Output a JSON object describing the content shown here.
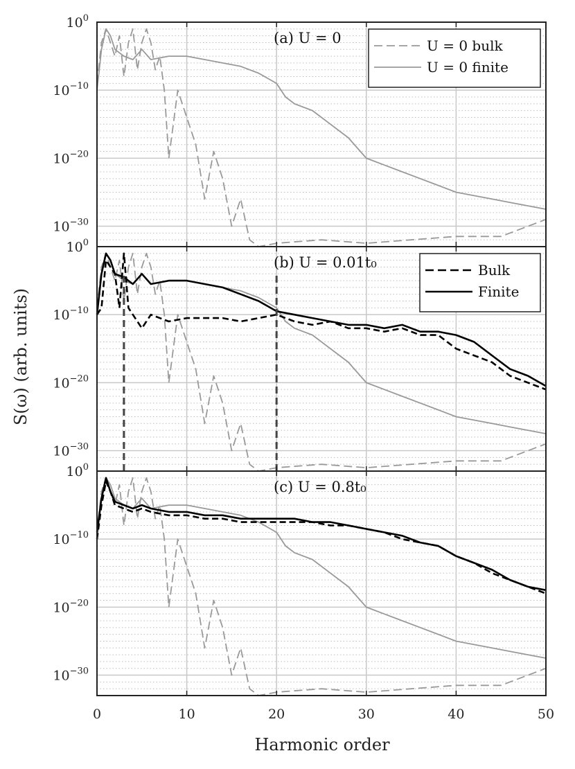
{
  "figure": {
    "ylabel": "S(ω) (arb. units)",
    "xlabel": "Harmonic order",
    "x_ticks": [
      "0",
      "10",
      "20",
      "30",
      "40",
      "50"
    ],
    "y_tick_base": "10",
    "y_tick_exponents": [
      "0",
      "−10",
      "−20",
      "−30"
    ]
  },
  "chart_data": [
    {
      "type": "line",
      "panel_label": "(a) U = 0",
      "xlim": [
        0,
        50
      ],
      "ylim_log10": [
        -33,
        0
      ],
      "y_scale": "log",
      "grid": true,
      "legend": {
        "placement": "top-right",
        "entries": [
          "U = 0 bulk",
          "U = 0 finite"
        ]
      },
      "series": [
        {
          "name": "U = 0 bulk",
          "style": "dashed",
          "color": "#999999",
          "x": [
            0,
            0.5,
            1,
            1.5,
            2,
            2.5,
            3,
            3.5,
            4,
            4.5,
            5,
            5.5,
            6,
            6.5,
            7,
            7.5,
            8,
            9,
            10,
            11,
            12,
            13,
            14,
            15,
            16,
            17,
            18,
            20,
            25,
            30,
            35,
            40,
            45,
            50
          ],
          "log10_y": [
            -9,
            -3,
            -1,
            -3,
            -5,
            -2,
            -8,
            -3,
            -1,
            -7,
            -3,
            -1,
            -3,
            -7,
            -5,
            -10,
            -20,
            -10,
            -14,
            -18,
            -26,
            -19,
            -23,
            -30,
            -26,
            -32,
            -33,
            -32.5,
            -32,
            -32.5,
            -32,
            -31.5,
            -31.5,
            -29
          ]
        },
        {
          "name": "U = 0 finite",
          "style": "solid",
          "color": "#999999",
          "x": [
            0,
            0.5,
            1,
            1.5,
            2,
            3,
            4,
            5,
            6,
            8,
            10,
            12,
            14,
            16,
            18,
            20,
            21,
            22,
            24,
            26,
            28,
            30,
            32,
            34,
            36,
            38,
            40,
            42,
            44,
            46,
            48,
            50
          ],
          "log10_y": [
            -10,
            -4,
            -1,
            -2,
            -4,
            -5,
            -5.5,
            -4,
            -5.5,
            -5,
            -5,
            -5.5,
            -6,
            -6.5,
            -7.5,
            -9,
            -11,
            -12,
            -13,
            -15,
            -17,
            -20,
            -21,
            -22,
            -23,
            -24,
            -25,
            -25.5,
            -26,
            -26.5,
            -27,
            -27.5
          ]
        }
      ]
    },
    {
      "type": "line",
      "panel_label": "(b) U = 0.01t₀",
      "xlim": [
        0,
        50
      ],
      "ylim_log10": [
        -33,
        0
      ],
      "y_scale": "log",
      "grid": true,
      "legend": {
        "placement": "top-right",
        "entries": [
          "Bulk",
          "Finite"
        ]
      },
      "vertical_markers_x": [
        3,
        20
      ],
      "series": [
        {
          "name": "Bulk",
          "style": "dashed",
          "color": "#000000",
          "x": [
            0,
            0.5,
            1,
            2,
            2.5,
            3,
            3.5,
            4,
            5,
            6,
            8,
            10,
            12,
            14,
            16,
            18,
            20,
            22,
            24,
            26,
            28,
            30,
            32,
            34,
            36,
            38,
            40,
            42,
            44,
            46,
            48,
            50
          ],
          "log10_y": [
            -10,
            -9,
            -2,
            -4,
            -9,
            -1,
            -9,
            -10,
            -12,
            -10,
            -11,
            -10.5,
            -10.5,
            -10.5,
            -11,
            -10.5,
            -10,
            -11,
            -11.5,
            -11,
            -12,
            -12,
            -12.5,
            -12,
            -13,
            -13,
            -15,
            -16,
            -17,
            -19,
            -20,
            -21
          ]
        },
        {
          "name": "Finite",
          "style": "solid",
          "color": "#000000",
          "x": [
            0,
            0.5,
            1,
            1.5,
            2,
            3,
            4,
            5,
            6,
            8,
            10,
            12,
            14,
            16,
            18,
            20,
            22,
            24,
            26,
            28,
            30,
            32,
            34,
            36,
            38,
            40,
            42,
            44,
            46,
            48,
            50
          ],
          "log10_y": [
            -10,
            -4,
            -1,
            -2,
            -4,
            -4.5,
            -5.5,
            -4,
            -5.5,
            -5,
            -5,
            -5.5,
            -6,
            -7,
            -8,
            -9.5,
            -10,
            -10.5,
            -11,
            -11.5,
            -11.5,
            -12,
            -11.5,
            -12.5,
            -12.5,
            -13,
            -14,
            -16,
            -18,
            -19,
            -20.5
          ]
        },
        {
          "name": "",
          "style": "dashed",
          "color": "#999999",
          "x": [
            0,
            0.5,
            1,
            1.5,
            2,
            2.5,
            3,
            3.5,
            4,
            4.5,
            5,
            5.5,
            6,
            6.5,
            7,
            7.5,
            8,
            9,
            10,
            11,
            12,
            13,
            14,
            15,
            16,
            17,
            18,
            20,
            25,
            30,
            35,
            40,
            45,
            50
          ],
          "log10_y": [
            -9,
            -3,
            -1,
            -3,
            -5,
            -2,
            -8,
            -3,
            -1,
            -7,
            -3,
            -1,
            -3,
            -7,
            -5,
            -10,
            -20,
            -10,
            -14,
            -18,
            -26,
            -19,
            -23,
            -30,
            -26,
            -32,
            -33,
            -32.5,
            -32,
            -32.5,
            -32,
            -31.5,
            -31.5,
            -29
          ]
        },
        {
          "name": "",
          "style": "solid",
          "color": "#999999",
          "x": [
            0,
            0.5,
            1,
            1.5,
            2,
            3,
            4,
            5,
            6,
            8,
            10,
            12,
            14,
            16,
            18,
            20,
            21,
            22,
            24,
            26,
            28,
            30,
            32,
            34,
            36,
            38,
            40,
            42,
            44,
            46,
            48,
            50
          ],
          "log10_y": [
            -10,
            -4,
            -1,
            -2,
            -4,
            -5,
            -5.5,
            -4,
            -5.5,
            -5,
            -5,
            -5.5,
            -6,
            -6.5,
            -7.5,
            -9,
            -11,
            -12,
            -13,
            -15,
            -17,
            -20,
            -21,
            -22,
            -23,
            -24,
            -25,
            -25.5,
            -26,
            -26.5,
            -27,
            -27.5
          ]
        }
      ]
    },
    {
      "type": "line",
      "panel_label": "(c) U = 0.8t₀",
      "xlim": [
        0,
        50
      ],
      "ylim_log10": [
        -33,
        0
      ],
      "y_scale": "log",
      "grid": true,
      "series": [
        {
          "name": "Bulk",
          "style": "dashed",
          "color": "#000000",
          "x": [
            0,
            0.5,
            1,
            1.5,
            2,
            3,
            4,
            5,
            6,
            8,
            10,
            12,
            14,
            16,
            18,
            20,
            22,
            24,
            26,
            28,
            30,
            32,
            34,
            36,
            38,
            40,
            42,
            44,
            46,
            48,
            50
          ],
          "log10_y": [
            -10,
            -5,
            -1.5,
            -3,
            -5,
            -5.5,
            -6,
            -5.5,
            -6,
            -6.5,
            -6.5,
            -7,
            -7,
            -7.5,
            -7.5,
            -7.5,
            -7.5,
            -7.5,
            -8,
            -8,
            -8.5,
            -9,
            -10,
            -10.5,
            -11,
            -12.5,
            -13.5,
            -15,
            -16,
            -17,
            -18
          ]
        },
        {
          "name": "Finite",
          "style": "solid",
          "color": "#000000",
          "x": [
            0,
            0.5,
            1,
            1.5,
            2,
            3,
            4,
            5,
            6,
            8,
            10,
            12,
            14,
            16,
            18,
            20,
            22,
            24,
            26,
            28,
            30,
            32,
            34,
            36,
            38,
            40,
            42,
            44,
            46,
            48,
            50
          ],
          "log10_y": [
            -9,
            -4,
            -1,
            -3,
            -4.5,
            -5,
            -5.5,
            -5,
            -5.5,
            -6,
            -6,
            -6.5,
            -6.5,
            -7,
            -7,
            -7,
            -7,
            -7.5,
            -7.5,
            -8,
            -8.5,
            -9,
            -9.5,
            -10.5,
            -11,
            -12.5,
            -13.5,
            -14.5,
            -16,
            -17,
            -17.5
          ]
        },
        {
          "name": "",
          "style": "dashed",
          "color": "#999999",
          "x": [
            0,
            0.5,
            1,
            1.5,
            2,
            2.5,
            3,
            3.5,
            4,
            4.5,
            5,
            5.5,
            6,
            6.5,
            7,
            7.5,
            8,
            9,
            10,
            11,
            12,
            13,
            14,
            15,
            16,
            17,
            18,
            20,
            25,
            30,
            35,
            40,
            45,
            50
          ],
          "log10_y": [
            -9,
            -3,
            -1,
            -3,
            -5,
            -2,
            -8,
            -3,
            -1,
            -7,
            -3,
            -1,
            -3,
            -7,
            -5,
            -10,
            -20,
            -10,
            -14,
            -18,
            -26,
            -19,
            -23,
            -30,
            -26,
            -32,
            -33,
            -32.5,
            -32,
            -32.5,
            -32,
            -31.5,
            -31.5,
            -29
          ]
        },
        {
          "name": "",
          "style": "solid",
          "color": "#999999",
          "x": [
            0,
            0.5,
            1,
            1.5,
            2,
            3,
            4,
            5,
            6,
            8,
            10,
            12,
            14,
            16,
            18,
            20,
            21,
            22,
            24,
            26,
            28,
            30,
            32,
            34,
            36,
            38,
            40,
            42,
            44,
            46,
            48,
            50
          ],
          "log10_y": [
            -10,
            -4,
            -1,
            -2,
            -4,
            -5,
            -5.5,
            -4,
            -5.5,
            -5,
            -5,
            -5.5,
            -6,
            -6.5,
            -7.5,
            -9,
            -11,
            -12,
            -13,
            -15,
            -17,
            -20,
            -21,
            -22,
            -23,
            -24,
            -25,
            -25.5,
            -26,
            -26.5,
            -27,
            -27.5
          ]
        }
      ]
    }
  ]
}
